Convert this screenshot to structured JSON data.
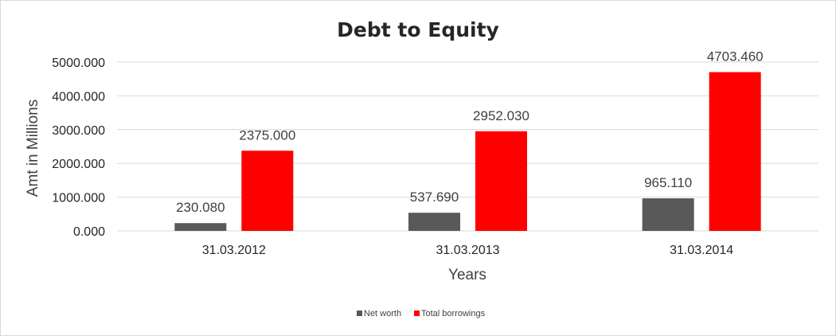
{
  "chart_data": {
    "type": "bar",
    "title": "Debt to Equity",
    "xlabel": "Years",
    "ylabel": "Amt in Millions",
    "categories": [
      "31.03.2012",
      "31.03.2013",
      "31.03.2014"
    ],
    "series": [
      {
        "name": "Net worth",
        "color": "#595959",
        "values": [
          230.08,
          537.69,
          965.11
        ],
        "labels": [
          "230.080",
          "537.690",
          "965.110"
        ]
      },
      {
        "name": "Total borrowings",
        "color": "#ff0000",
        "values": [
          2375.0,
          2952.03,
          4703.46
        ],
        "labels": [
          "2375.000",
          "2952.030",
          "4703.460"
        ]
      }
    ],
    "ylim": [
      0,
      5000
    ],
    "yticks": [
      0,
      1000,
      2000,
      3000,
      4000,
      5000
    ],
    "ytick_labels": [
      "0.000",
      "1000.000",
      "2000.000",
      "3000.000",
      "4000.000",
      "5000.000"
    ],
    "grid": true,
    "legend_position": "bottom"
  }
}
